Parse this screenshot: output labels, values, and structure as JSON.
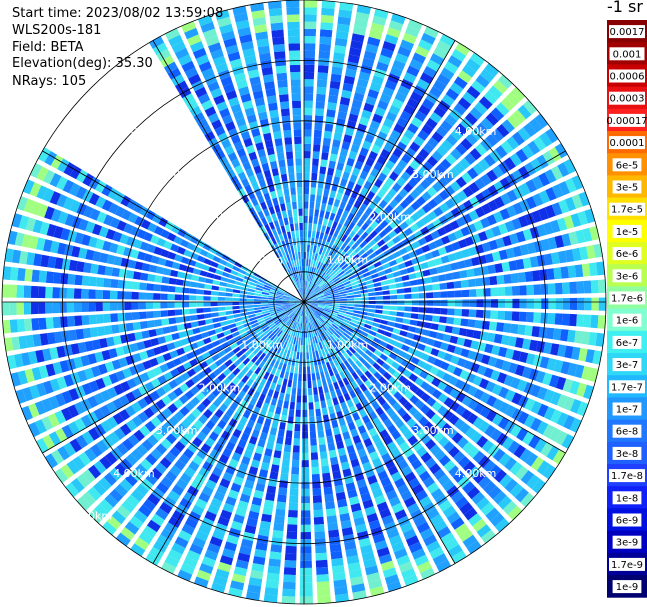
{
  "info": {
    "start_time": "Start time: 2023/08/02 13:59:08",
    "instrument": "WLS200s-181",
    "field": "Field: BETA",
    "elevation": "Elevation(deg): 35.30",
    "nrays": "NRays: 105"
  },
  "colorbar": {
    "unit_label": "-1 sr",
    "labels": [
      "0.0017",
      "0.001",
      "0.0006",
      "0.0003",
      "0.00017",
      "0.0001",
      "6e-5",
      "3e-5",
      "1.7e-5",
      "1e-5",
      "6e-6",
      "3e-6",
      "1.7e-6",
      "1e-6",
      "6e-7",
      "3e-7",
      "1.7e-7",
      "1e-7",
      "6e-8",
      "3e-8",
      "1.7e-8",
      "1e-8",
      "6e-9",
      "3e-9",
      "1.7e-9",
      "1e-9"
    ],
    "colors": [
      "#880000",
      "#a00000",
      "#c80000",
      "#e81010",
      "#ff2020",
      "#ff6a00",
      "#ff9000",
      "#ffb800",
      "#ffe000",
      "#ffff00",
      "#e0ff20",
      "#b8ff50",
      "#90ffa0",
      "#80ffd0",
      "#40f0f0",
      "#30d8f8",
      "#20b8ff",
      "#2098ff",
      "#2078ff",
      "#2060ff",
      "#2040ff",
      "#1020f8",
      "#0010e0",
      "#0000c0",
      "#000098",
      "#000070"
    ]
  },
  "chart_data": {
    "type": "heatmap",
    "projection": "polar (PPI scan)",
    "field": "BETA",
    "unit": "-1 sr",
    "elevation_deg": 35.3,
    "n_rays": 105,
    "range_ring_labels": [
      "1.00km",
      "2.00km",
      "3.00km",
      "4.00km",
      "5.00km"
    ],
    "range_rings_km": [
      1,
      2,
      3,
      4,
      5
    ],
    "max_range_km": 5.0,
    "missing_azimuth_sector_deg": [
      300,
      330
    ],
    "color_scale": "log",
    "value_range": [
      1e-09,
      0.0017
    ],
    "dominant_value": "1e-8 to 1.7e-7 (blue/cyan), higher (green/yellow) near outer edge at ~4.8-5 km"
  }
}
